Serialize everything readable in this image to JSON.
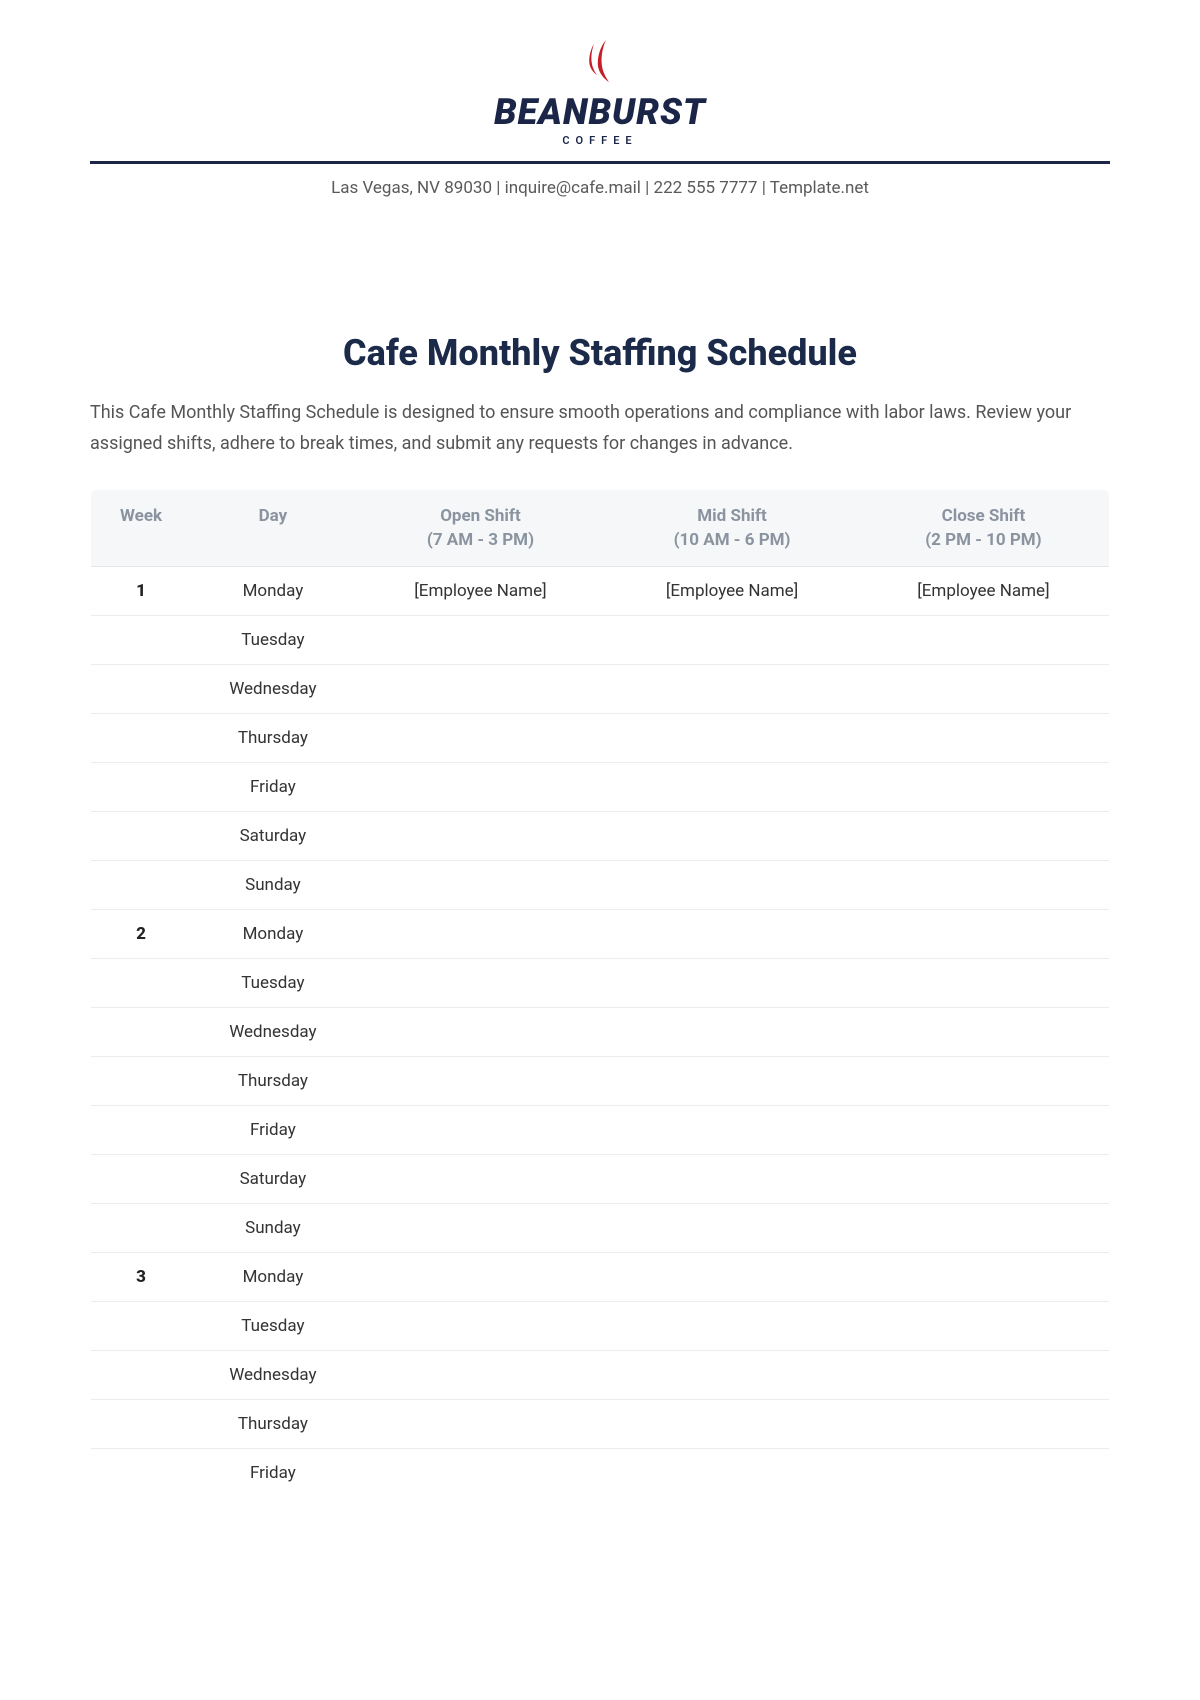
{
  "brand": {
    "name": "BEANBURST",
    "subtitle": "COFFEE",
    "flame_color": "#c41e26",
    "text_color": "#1a2548"
  },
  "contact": {
    "line": "Las Vegas, NV 89030 | inquire@cafe.mail | 222 555 7777 | Template.net"
  },
  "document": {
    "title": "Cafe Monthly Staffing Schedule",
    "description": "This Cafe Monthly Staffing Schedule is designed to ensure smooth operations and compliance with labor laws. Review your assigned shifts, adhere to break times, and submit any requests for changes in advance."
  },
  "table": {
    "columns": [
      {
        "label": "Week",
        "sub": ""
      },
      {
        "label": "Day",
        "sub": ""
      },
      {
        "label": "Open Shift",
        "sub": "(7 AM - 3 PM)"
      },
      {
        "label": "Mid Shift",
        "sub": "(10 AM - 6 PM)"
      },
      {
        "label": "Close Shift",
        "sub": "(2 PM - 10 PM)"
      }
    ],
    "rows": [
      {
        "week": "1",
        "day": "Monday",
        "open": "[Employee Name]",
        "mid": "[Employee Name]",
        "close": "[Employee Name]"
      },
      {
        "week": "",
        "day": "Tuesday",
        "open": "",
        "mid": "",
        "close": ""
      },
      {
        "week": "",
        "day": "Wednesday",
        "open": "",
        "mid": "",
        "close": ""
      },
      {
        "week": "",
        "day": "Thursday",
        "open": "",
        "mid": "",
        "close": ""
      },
      {
        "week": "",
        "day": "Friday",
        "open": "",
        "mid": "",
        "close": ""
      },
      {
        "week": "",
        "day": "Saturday",
        "open": "",
        "mid": "",
        "close": ""
      },
      {
        "week": "",
        "day": "Sunday",
        "open": "",
        "mid": "",
        "close": ""
      },
      {
        "week": "2",
        "day": "Monday",
        "open": "",
        "mid": "",
        "close": ""
      },
      {
        "week": "",
        "day": "Tuesday",
        "open": "",
        "mid": "",
        "close": ""
      },
      {
        "week": "",
        "day": "Wednesday",
        "open": "",
        "mid": "",
        "close": ""
      },
      {
        "week": "",
        "day": "Thursday",
        "open": "",
        "mid": "",
        "close": ""
      },
      {
        "week": "",
        "day": "Friday",
        "open": "",
        "mid": "",
        "close": ""
      },
      {
        "week": "",
        "day": "Saturday",
        "open": "",
        "mid": "",
        "close": ""
      },
      {
        "week": "",
        "day": "Sunday",
        "open": "",
        "mid": "",
        "close": ""
      },
      {
        "week": "3",
        "day": "Monday",
        "open": "",
        "mid": "",
        "close": ""
      },
      {
        "week": "",
        "day": "Tuesday",
        "open": "",
        "mid": "",
        "close": ""
      },
      {
        "week": "",
        "day": "Wednesday",
        "open": "",
        "mid": "",
        "close": ""
      },
      {
        "week": "",
        "day": "Thursday",
        "open": "",
        "mid": "",
        "close": ""
      },
      {
        "week": "",
        "day": "Friday",
        "open": "",
        "mid": "",
        "close": ""
      }
    ],
    "header_bg": "#f5f7f9",
    "header_color": "#8a94a0",
    "border_color": "#e0e0e0",
    "row_border_color": "#ececec"
  }
}
